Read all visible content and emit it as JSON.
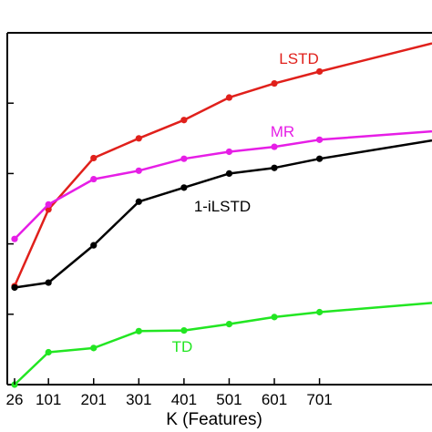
{
  "chart_data": {
    "type": "line",
    "xlabel": "K (Features)",
    "ylabel": "",
    "title": "",
    "x_ticks": [
      "26",
      "101",
      "201",
      "301",
      "401",
      "501",
      "601",
      "701"
    ],
    "xlim": [
      26,
      950
    ],
    "ylim": [
      0,
      5
    ],
    "grid": false,
    "legend": "none",
    "series": [
      {
        "name": "LSTD",
        "color": "#e0201b",
        "x": [
          26,
          101,
          201,
          301,
          401,
          501,
          601,
          701,
          950
        ],
        "y": [
          1.4,
          2.49,
          3.22,
          3.5,
          3.76,
          4.08,
          4.28,
          4.45,
          4.85
        ],
        "marker_count": 8
      },
      {
        "name": "MR",
        "color": "#e61ee6",
        "x": [
          26,
          101,
          201,
          301,
          401,
          501,
          601,
          701,
          950
        ],
        "y": [
          2.07,
          2.56,
          2.92,
          3.04,
          3.21,
          3.31,
          3.38,
          3.48,
          3.6
        ],
        "marker_count": 8
      },
      {
        "name": "1-iLSTD",
        "color": "#000000",
        "x": [
          26,
          101,
          201,
          301,
          401,
          501,
          601,
          701,
          950
        ],
        "y": [
          1.38,
          1.45,
          1.98,
          2.6,
          2.8,
          3.0,
          3.08,
          3.21,
          3.47
        ],
        "marker_count": 8
      },
      {
        "name": "TD",
        "color": "#22e622",
        "x": [
          26,
          101,
          201,
          301,
          401,
          501,
          601,
          701,
          950
        ],
        "y": [
          0.0,
          0.46,
          0.52,
          0.76,
          0.77,
          0.86,
          0.96,
          1.03,
          1.16
        ],
        "marker_count": 8
      }
    ]
  }
}
